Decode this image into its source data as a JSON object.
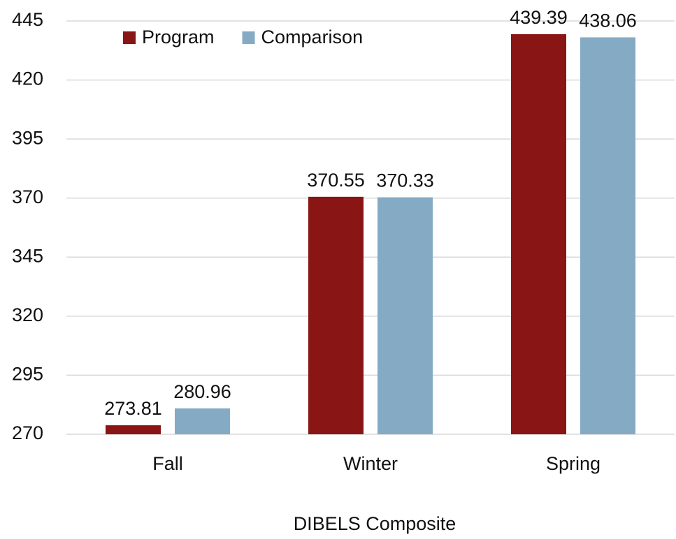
{
  "chart_data": {
    "type": "bar",
    "categories": [
      "Fall",
      "Winter",
      "Spring"
    ],
    "series": [
      {
        "name": "Program",
        "color": "#8a1515",
        "values": [
          273.81,
          370.55,
          439.39
        ]
      },
      {
        "name": "Comparison",
        "color": "#85abc4",
        "values": [
          280.96,
          370.33,
          438.06
        ]
      }
    ],
    "x_label": "DIBELS Composite",
    "ylim": [
      270,
      445
    ],
    "yticks": [
      270,
      295,
      320,
      345,
      370,
      395,
      420,
      445
    ],
    "grid": true,
    "legend": "top-left"
  }
}
